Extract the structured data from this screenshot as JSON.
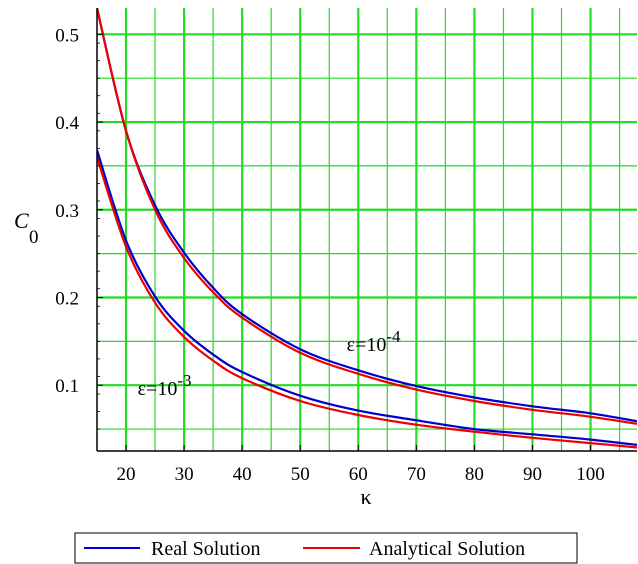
{
  "chart_data": {
    "type": "line",
    "xlabel": "κ",
    "ylabel": "C",
    "ylabel_subscript": "0",
    "xlim": [
      15,
      108
    ],
    "ylim": [
      0.025,
      0.53
    ],
    "x_ticks": [
      20,
      30,
      40,
      50,
      60,
      70,
      80,
      90,
      100
    ],
    "y_ticks": [
      0.1,
      0.2,
      0.3,
      0.4,
      0.5
    ],
    "x_tick_labels": [
      "20",
      "30",
      "40",
      "50",
      "60",
      "70",
      "80",
      "90",
      "100"
    ],
    "y_tick_labels": [
      "0.1",
      "0.2",
      "0.3",
      "0.4",
      "0.5"
    ],
    "grid": true,
    "grid_color": "#22dd22",
    "legend_placement": "bottom",
    "series": [
      {
        "name": "Real Solution",
        "group": "ε=10^-4",
        "color": "#0000cc",
        "x": [
          15,
          20,
          25,
          30,
          35,
          40,
          50,
          60,
          70,
          80,
          90,
          100,
          108
        ],
        "y": [
          0.53,
          0.39,
          0.305,
          0.251,
          0.211,
          0.181,
          0.141,
          0.117,
          0.099,
          0.086,
          0.076,
          0.068,
          0.059
        ]
      },
      {
        "name": "Analytical Solution",
        "group": "ε=10^-4",
        "color": "#ee0000",
        "x": [
          15,
          20,
          25,
          30,
          35,
          40,
          50,
          60,
          70,
          80,
          90,
          100,
          108
        ],
        "y": [
          0.53,
          0.39,
          0.3,
          0.245,
          0.206,
          0.177,
          0.137,
          0.113,
          0.095,
          0.082,
          0.072,
          0.064,
          0.056
        ]
      },
      {
        "name": "Real Solution",
        "group": "ε=10^-3",
        "color": "#0000cc",
        "x": [
          15,
          20,
          25,
          30,
          35,
          40,
          50,
          60,
          70,
          80,
          90,
          100,
          108
        ],
        "y": [
          0.368,
          0.265,
          0.201,
          0.162,
          0.135,
          0.115,
          0.088,
          0.071,
          0.06,
          0.05,
          0.044,
          0.038,
          0.032
        ]
      },
      {
        "name": "Analytical Solution",
        "group": "ε=10^-3",
        "color": "#ee0000",
        "x": [
          15,
          20,
          25,
          30,
          35,
          40,
          50,
          60,
          70,
          80,
          90,
          100,
          108
        ],
        "y": [
          0.36,
          0.258,
          0.194,
          0.155,
          0.128,
          0.108,
          0.082,
          0.066,
          0.055,
          0.047,
          0.04,
          0.034,
          0.029
        ]
      }
    ],
    "annotations": [
      {
        "id": "eps4",
        "base": "ε=10",
        "exponent": "-4",
        "x": 58,
        "y": 0.139
      },
      {
        "id": "eps3",
        "base": "ε=10",
        "exponent": "-3",
        "x": 22,
        "y": 0.089
      }
    ],
    "legend": {
      "entries": [
        {
          "label": "Real Solution",
          "color": "#0000cc"
        },
        {
          "label": "Analytical Solution",
          "color": "#ee0000"
        }
      ]
    }
  }
}
